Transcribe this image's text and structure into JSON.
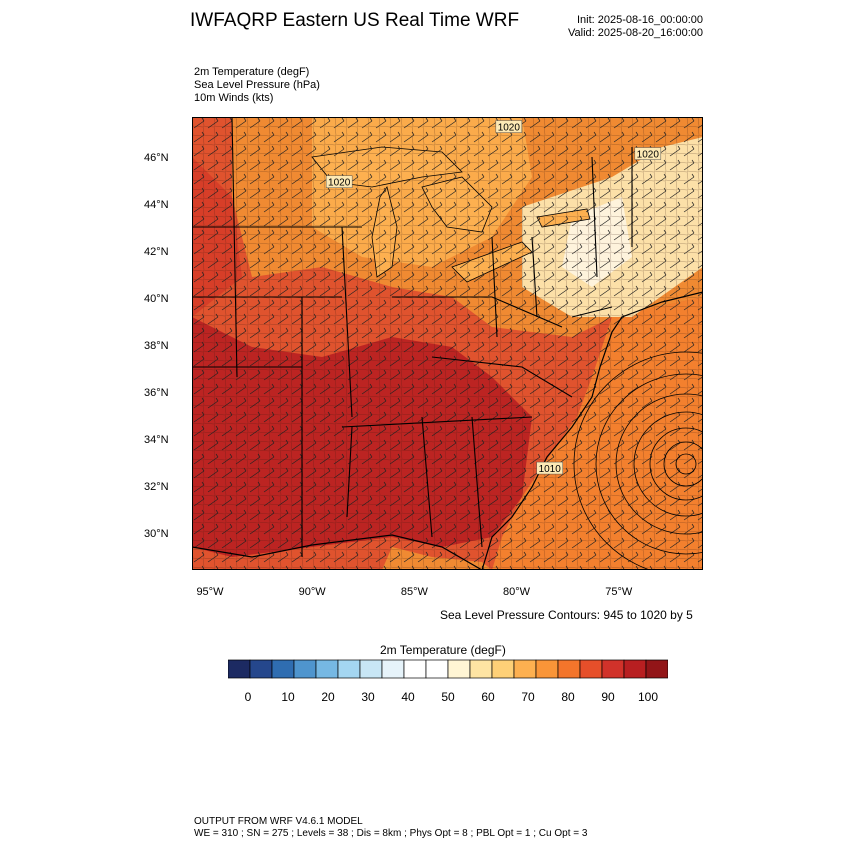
{
  "header": {
    "title": "IWFAQRP Eastern US Real Time WRF",
    "init": "Init: 2025-08-16_00:00:00",
    "valid": "Valid: 2025-08-20_16:00:00"
  },
  "fields": [
    "2m Temperature   (degF)",
    "Sea Level Pressure   (hPa)",
    "10m Winds   (kts)"
  ],
  "map": {
    "lon_range": [
      -96,
      -71
    ],
    "lat_range": [
      28.5,
      47.8
    ],
    "lat_ticks": [
      {
        "value": 46,
        "label": "46°N"
      },
      {
        "value": 44,
        "label": "44°N"
      },
      {
        "value": 42,
        "label": "42°N"
      },
      {
        "value": 40,
        "label": "40°N"
      },
      {
        "value": 38,
        "label": "38°N"
      },
      {
        "value": 36,
        "label": "36°N"
      },
      {
        "value": 34,
        "label": "34°N"
      },
      {
        "value": 32,
        "label": "32°N"
      },
      {
        "value": 30,
        "label": "30°N"
      }
    ],
    "lon_ticks": [
      {
        "value": -95,
        "label": "95°W"
      },
      {
        "value": -90,
        "label": "90°W"
      },
      {
        "value": -85,
        "label": "85°W"
      },
      {
        "value": -80,
        "label": "80°W"
      },
      {
        "value": -75,
        "label": "75°W"
      }
    ],
    "contour_labels": [
      {
        "text": "1020",
        "lon": -80.5,
        "lat": 47.35
      },
      {
        "text": "1020",
        "lon": -73.7,
        "lat": 46.2
      },
      {
        "text": "1020",
        "lon": -88.8,
        "lat": 45.0
      },
      {
        "text": "1010",
        "lon": -78.5,
        "lat": 32.8
      }
    ],
    "low_center": {
      "lon": -71.4,
      "lat": 33.0
    },
    "colors": {
      "land_base": "#e0532e",
      "hot": "#b81f21",
      "warm": "#f08a32",
      "mild": "#fdb050",
      "cool": "#fde9b5",
      "ocean": "#f3802e"
    }
  },
  "contour_note": "Sea Level Pressure Contours: 945 to 1020 by 5",
  "colorbar": {
    "title": "2m Temperature  (degF)",
    "colors": [
      "#1c2a62",
      "#25478c",
      "#2f6db1",
      "#4f95ce",
      "#76b8e3",
      "#a4d6f1",
      "#c8e6f5",
      "#e6f3fa",
      "#ffffff",
      "#ffffff",
      "#fff5d4",
      "#fee4a3",
      "#fed077",
      "#fdb050",
      "#f99538",
      "#f3752b",
      "#e64f2a",
      "#d1322a",
      "#b81f21",
      "#921518"
    ],
    "labels": [
      "0",
      "10",
      "20",
      "30",
      "40",
      "50",
      "60",
      "70",
      "80",
      "90",
      "100"
    ]
  },
  "footer": {
    "line1": "OUTPUT FROM WRF V4.6.1 MODEL",
    "line2": "WE = 310 ; SN = 275 ; Levels = 38 ; Dis = 8km ; Phys Opt = 8 ; PBL Opt = 1 ; Cu Opt = 3"
  }
}
